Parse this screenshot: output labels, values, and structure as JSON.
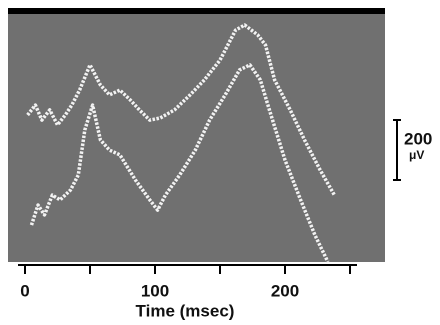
{
  "chart_data": {
    "type": "line",
    "x_label": "Time (msec)",
    "xlim": [
      -5,
      255
    ],
    "xticks": [
      0,
      100,
      200
    ],
    "minor_xticks": [
      50,
      150,
      250
    ],
    "ylim": [
      0,
      840
    ],
    "scale_bar_value": 200,
    "scale_bar_unit": "μV",
    "series": [
      {
        "color": "#f2f2f2",
        "x": [
          2,
          8,
          13,
          19,
          25,
          31,
          36,
          42,
          50,
          58,
          65,
          73,
          81,
          88,
          96,
          104,
          115,
          127,
          138,
          150,
          162,
          169,
          179,
          185,
          192,
          204,
          215,
          227,
          238
        ],
        "values": [
          490,
          523,
          473,
          507,
          457,
          490,
          523,
          573,
          657,
          590,
          557,
          573,
          540,
          507,
          473,
          480,
          507,
          557,
          607,
          673,
          773,
          790,
          757,
          723,
          607,
          507,
          407,
          307,
          223
        ]
      },
      {
        "color": "#f2f2f2",
        "x": [
          5,
          10,
          15,
          21,
          27,
          35,
          41,
          46,
          52,
          58,
          65,
          73,
          85,
          96,
          102,
          108,
          119,
          131,
          142,
          154,
          165,
          173,
          181,
          188,
          200,
          212,
          223,
          233
        ],
        "values": [
          123,
          190,
          157,
          223,
          207,
          240,
          290,
          440,
          523,
          407,
          373,
          357,
          273,
          207,
          173,
          223,
          290,
          373,
          473,
          557,
          640,
          657,
          607,
          507,
          340,
          207,
          90,
          0
        ]
      }
    ]
  }
}
